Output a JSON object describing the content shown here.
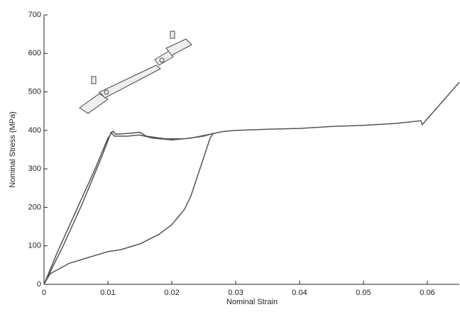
{
  "chart_data": {
    "type": "line",
    "xlabel": "Nominal Strain",
    "ylabel": "Nominal Stress (MPa)",
    "xlim": [
      0,
      0.065
    ],
    "ylim": [
      0,
      700
    ],
    "xticks": [
      0,
      0.01,
      0.02,
      0.03,
      0.04,
      0.05,
      0.06
    ],
    "yticks": [
      0,
      100,
      200,
      300,
      400,
      500,
      600,
      700
    ],
    "series": [
      {
        "color": "#555555",
        "x": [
          0,
          0.002,
          0.005,
          0.008,
          0.01,
          0.0108,
          0.0112,
          0.013,
          0.015,
          0.016,
          0.019,
          0.022,
          0.025,
          0.0265,
          0.026,
          0.025,
          0.024,
          0.023,
          0.022,
          0.02,
          0.018,
          0.015,
          0.012,
          0.01,
          0.007,
          0.004,
          0.001,
          0.0005,
          0,
          0.003,
          0.006,
          0.009,
          0.0105,
          0.011,
          0.013,
          0.015,
          0.017,
          0.02,
          0.023,
          0.026,
          0.028,
          0.03,
          0.035,
          0.04,
          0.045,
          0.05,
          0.055,
          0.059,
          0.0592,
          0.065
        ],
        "values": [
          0,
          80,
          190,
          300,
          380,
          398,
          390,
          392,
          395,
          385,
          378,
          378,
          385,
          392,
          380,
          330,
          280,
          230,
          195,
          155,
          130,
          105,
          90,
          85,
          70,
          55,
          28,
          15,
          0,
          100,
          210,
          330,
          395,
          385,
          385,
          388,
          380,
          375,
          380,
          390,
          397,
          400,
          403,
          405,
          410,
          413,
          418,
          425,
          415,
          525
        ]
      }
    ]
  }
}
